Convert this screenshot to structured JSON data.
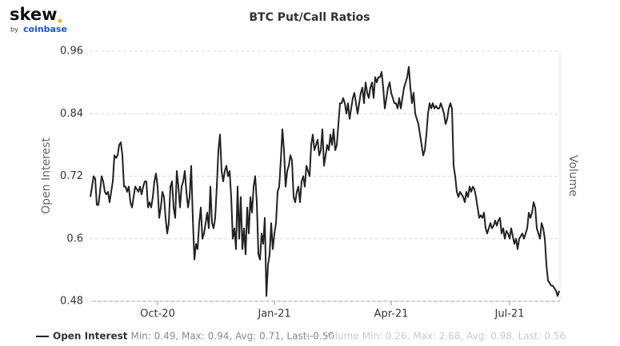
{
  "logo": {
    "text": "skew",
    "by": "by",
    "brand": "coinbase"
  },
  "chart_data": {
    "type": "line",
    "title": "BTC Put/Call Ratios",
    "ylabel": "Open Interest",
    "y2label": "Volume",
    "x": [
      0,
      1,
      2,
      3,
      4,
      5,
      6,
      7,
      8,
      9,
      10,
      11,
      12,
      13,
      14,
      15,
      16,
      17,
      18,
      19,
      20,
      21,
      22,
      23,
      24,
      25,
      26,
      27,
      28,
      29,
      30,
      31,
      32,
      33,
      34,
      35,
      36,
      37,
      38,
      39,
      40,
      41,
      42,
      43,
      44,
      45,
      46,
      47,
      48,
      49,
      50,
      51,
      52,
      53,
      54,
      55,
      56,
      57,
      58,
      59,
      60,
      61,
      62,
      63,
      64,
      65,
      66,
      67,
      68,
      69,
      70,
      71,
      72,
      73,
      74,
      75,
      76,
      77,
      78,
      79,
      80,
      81,
      82,
      83,
      84,
      85,
      86,
      87,
      88,
      89,
      90,
      91,
      92,
      93,
      94,
      95,
      96,
      97,
      98,
      99,
      100,
      101,
      102,
      103,
      104,
      105,
      106,
      107,
      108,
      109,
      110,
      111,
      112,
      113,
      114,
      115,
      116,
      117,
      118,
      119,
      120,
      121,
      122,
      123,
      124,
      125,
      126,
      127,
      128,
      129,
      130,
      131,
      132,
      133,
      134,
      135,
      136,
      137,
      138,
      139,
      140,
      141,
      142,
      143,
      144,
      145,
      146,
      147,
      148,
      149,
      150,
      151,
      152,
      153,
      154,
      155,
      156,
      157,
      158,
      159,
      160,
      161,
      162,
      163,
      164,
      165,
      166,
      167,
      168,
      169,
      170,
      171,
      172,
      173,
      174,
      175,
      176,
      177,
      178,
      179,
      180,
      181,
      182,
      183,
      184,
      185,
      186,
      187,
      188,
      189,
      190,
      191,
      192,
      193,
      194,
      195,
      196,
      197,
      198,
      199,
      200,
      201,
      202,
      203,
      204,
      205,
      206,
      207,
      208,
      209,
      210,
      211,
      212,
      213,
      214,
      215,
      216,
      217,
      218,
      219,
      220,
      221,
      222,
      223,
      224,
      225,
      226,
      227,
      228,
      229,
      230,
      231,
      232,
      233,
      234,
      235,
      236,
      237,
      238,
      239,
      240,
      241,
      242,
      243,
      244,
      245,
      246,
      247,
      248,
      249,
      250,
      251,
      252,
      253,
      254,
      255,
      256,
      257,
      258,
      259,
      260,
      261,
      262,
      263,
      264,
      265,
      266,
      267,
      268,
      269,
      270,
      271,
      272,
      273,
      274,
      275,
      276,
      277,
      278,
      279,
      280,
      281,
      282,
      283,
      284,
      285,
      286,
      287,
      288,
      289,
      290,
      291,
      292,
      293
    ],
    "xlim": [
      -0.5,
      293.5
    ],
    "xticks": [
      {
        "value": 42,
        "label": "Oct-20"
      },
      {
        "value": 115,
        "label": "Jan-21"
      },
      {
        "value": 188,
        "label": "Apr-21"
      },
      {
        "value": 262,
        "label": "Jul-21"
      }
    ],
    "ylim": [
      0.48,
      0.96
    ],
    "yticks": [
      0.48,
      0.6,
      0.72,
      0.84,
      0.96
    ],
    "grid": true,
    "series": [
      {
        "name": "Open Interest",
        "color": "#222222",
        "visible": true,
        "stats": "Min: 0.49, Max: 0.94, Avg: 0.71, Last: 0.50",
        "values": [
          0.68,
          0.7,
          0.72,
          0.715,
          0.665,
          0.665,
          0.69,
          0.72,
          0.71,
          0.69,
          0.685,
          0.69,
          0.67,
          0.69,
          0.71,
          0.76,
          0.755,
          0.76,
          0.78,
          0.785,
          0.76,
          0.7,
          0.7,
          0.69,
          0.7,
          0.67,
          0.66,
          0.68,
          0.7,
          0.695,
          0.69,
          0.7,
          0.685,
          0.7,
          0.71,
          0.71,
          0.66,
          0.67,
          0.66,
          0.68,
          0.71,
          0.725,
          0.7,
          0.64,
          0.66,
          0.69,
          0.68,
          0.64,
          0.61,
          0.63,
          0.7,
          0.71,
          0.66,
          0.64,
          0.73,
          0.7,
          0.66,
          0.7,
          0.71,
          0.73,
          0.69,
          0.66,
          0.68,
          0.74,
          0.64,
          0.56,
          0.59,
          0.58,
          0.63,
          0.66,
          0.6,
          0.61,
          0.63,
          0.65,
          0.62,
          0.7,
          0.63,
          0.62,
          0.64,
          0.7,
          0.77,
          0.8,
          0.73,
          0.71,
          0.73,
          0.74,
          0.72,
          0.73,
          0.68,
          0.6,
          0.62,
          0.58,
          0.7,
          0.6,
          0.68,
          0.58,
          0.62,
          0.57,
          0.66,
          0.61,
          0.68,
          0.65,
          0.7,
          0.72,
          0.67,
          0.57,
          0.56,
          0.61,
          0.59,
          0.64,
          0.49,
          0.55,
          0.57,
          0.63,
          0.58,
          0.61,
          0.63,
          0.69,
          0.7,
          0.75,
          0.81,
          0.77,
          0.7,
          0.73,
          0.74,
          0.76,
          0.75,
          0.68,
          0.67,
          0.69,
          0.7,
          0.67,
          0.71,
          0.72,
          0.7,
          0.74,
          0.73,
          0.72,
          0.78,
          0.8,
          0.77,
          0.78,
          0.79,
          0.76,
          0.77,
          0.81,
          0.74,
          0.76,
          0.78,
          0.77,
          0.8,
          0.78,
          0.81,
          0.77,
          0.78,
          0.82,
          0.86,
          0.86,
          0.87,
          0.86,
          0.84,
          0.86,
          0.83,
          0.85,
          0.87,
          0.88,
          0.86,
          0.84,
          0.86,
          0.88,
          0.89,
          0.86,
          0.9,
          0.88,
          0.87,
          0.89,
          0.9,
          0.87,
          0.91,
          0.9,
          0.91,
          0.91,
          0.92,
          0.89,
          0.85,
          0.87,
          0.89,
          0.9,
          0.88,
          0.87,
          0.86,
          0.86,
          0.85,
          0.87,
          0.85,
          0.87,
          0.89,
          0.9,
          0.91,
          0.93,
          0.89,
          0.86,
          0.88,
          0.84,
          0.83,
          0.82,
          0.8,
          0.78,
          0.76,
          0.77,
          0.8,
          0.84,
          0.86,
          0.85,
          0.86,
          0.85,
          0.855,
          0.85,
          0.85,
          0.86,
          0.85,
          0.84,
          0.82,
          0.83,
          0.85,
          0.86,
          0.85,
          0.74,
          0.72,
          0.69,
          0.68,
          0.69,
          0.685,
          0.68,
          0.67,
          0.69,
          0.68,
          0.7,
          0.69,
          0.7,
          0.695,
          0.68,
          0.66,
          0.64,
          0.645,
          0.64,
          0.65,
          0.62,
          0.61,
          0.62,
          0.63,
          0.62,
          0.625,
          0.635,
          0.625,
          0.635,
          0.64,
          0.61,
          0.62,
          0.6,
          0.615,
          0.61,
          0.6,
          0.62,
          0.605,
          0.59,
          0.6,
          0.58,
          0.6,
          0.605,
          0.61,
          0.6,
          0.61,
          0.62,
          0.65,
          0.64,
          0.65,
          0.67,
          0.66,
          0.62,
          0.61,
          0.6,
          0.63,
          0.62,
          0.6,
          0.55,
          0.52,
          0.515,
          0.51,
          0.51,
          0.505,
          0.5,
          0.49,
          0.5
        ]
      },
      {
        "name": "Volume",
        "color": "#cccccc",
        "visible": false,
        "axis": "y2",
        "stats": "Min: 0.26, Max: 2.68, Avg: 0.98, Last: 0.56"
      }
    ]
  }
}
